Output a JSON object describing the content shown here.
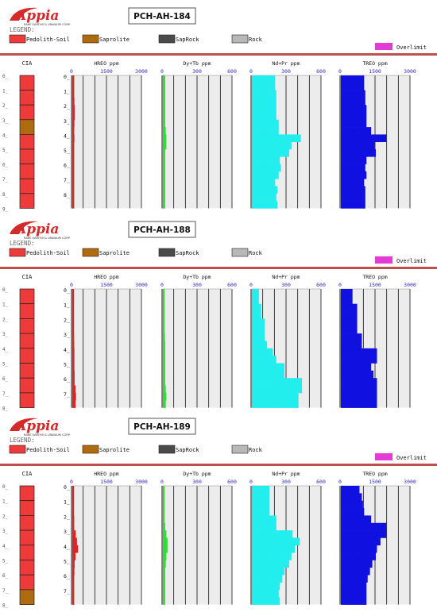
{
  "logo": {
    "name": "Appia",
    "tagline": "RARE EARTHS & URANIUM CORP."
  },
  "legend": {
    "title": "LEGEND:",
    "items": [
      {
        "label": "Pedolith-Soil",
        "color": "#ee3a3a"
      },
      {
        "label": "Saprolite",
        "color": "#b06b10"
      },
      {
        "label": "SapRock",
        "color": "#4a4a4a"
      },
      {
        "label": "Rock",
        "color": "#b8b8b8"
      }
    ],
    "overlimit": {
      "label": "Overlimit",
      "color": "#e43ad6"
    }
  },
  "colors": {
    "divider": "#c0504d",
    "track_bg": "#ececec",
    "tick_label": "#2b2bbf"
  },
  "chart_data": [
    {
      "type": "bar",
      "hole": "PCH-AH-184",
      "cia": {
        "title": "CIA",
        "depths": [
          0,
          1,
          2,
          3,
          4,
          5,
          6,
          7,
          8,
          9
        ],
        "classes": [
          "Pedolith-Soil",
          "Pedolith-Soil",
          "Pedolith-Soil",
          "Saprolite",
          "Pedolith-Soil",
          "Pedolith-Soil",
          "Pedolith-Soil",
          "Pedolith-Soil",
          "Pedolith-Soil"
        ]
      },
      "depth_labels": [
        0,
        1,
        2,
        3,
        4,
        5,
        6,
        7,
        8
      ],
      "tracks": [
        {
          "title": "HREO ppm",
          "ticks": [
            0,
            1500,
            3000
          ],
          "xlim": [
            0,
            3000
          ],
          "color": "#e02222",
          "values": [
            80,
            80,
            80,
            90,
            110,
            110,
            90,
            80,
            90,
            80,
            80,
            80,
            80,
            80,
            80,
            80,
            80,
            80
          ]
        },
        {
          "title": "Dy+Tb ppm",
          "ticks": [
            0,
            300,
            600
          ],
          "xlim": [
            0,
            600
          ],
          "color": "#33dd33",
          "values": [
            20,
            20,
            20,
            20,
            20,
            20,
            20,
            25,
            30,
            30,
            20,
            20,
            20,
            20,
            20,
            20,
            20,
            20
          ]
        },
        {
          "title": "Nd+Pr ppm",
          "ticks": [
            0,
            300,
            600
          ],
          "xlim": [
            0,
            600
          ],
          "color": "#22eeee",
          "values": [
            200,
            200,
            210,
            210,
            210,
            210,
            230,
            230,
            420,
            340,
            320,
            240,
            250,
            230,
            200,
            220,
            210,
            220
          ]
        },
        {
          "title": "TREO ppm",
          "ticks": [
            0,
            1500,
            3000
          ],
          "xlim": [
            0,
            3000
          ],
          "color": "#1010e0",
          "values": [
            1000,
            1000,
            1050,
            1050,
            1100,
            1100,
            1100,
            1300,
            1950,
            1450,
            1500,
            1100,
            1050,
            1100,
            1000,
            1050,
            1050,
            1050
          ]
        }
      ]
    },
    {
      "type": "bar",
      "hole": "PCH-AH-188",
      "cia": {
        "title": "CIA",
        "depths": [
          0,
          1,
          2,
          3,
          4,
          5,
          6,
          7,
          8
        ],
        "classes": [
          "Pedolith-Soil",
          "Pedolith-Soil",
          "Pedolith-Soil",
          "Pedolith-Soil",
          "Pedolith-Soil",
          "Pedolith-Soil",
          "Pedolith-Soil",
          "Pedolith-Soil"
        ]
      },
      "depth_labels": [
        0,
        1,
        2,
        3,
        4,
        5,
        6,
        7
      ],
      "tracks": [
        {
          "title": "HREO ppm",
          "ticks": [
            0,
            1500,
            3000
          ],
          "xlim": [
            0,
            3000
          ],
          "color": "#e02222",
          "values": [
            70,
            70,
            70,
            70,
            70,
            70,
            75,
            80,
            90,
            90,
            90,
            100,
            100,
            140,
            160,
            140
          ]
        },
        {
          "title": "Dy+Tb ppm",
          "ticks": [
            0,
            300,
            600
          ],
          "xlim": [
            0,
            600
          ],
          "color": "#33dd33",
          "values": [
            15,
            15,
            15,
            15,
            15,
            15,
            18,
            20,
            20,
            20,
            20,
            20,
            20,
            25,
            30,
            25
          ]
        },
        {
          "title": "Nd+Pr ppm",
          "ticks": [
            0,
            300,
            600
          ],
          "xlim": [
            0,
            600
          ],
          "color": "#22eeee",
          "values": [
            60,
            60,
            80,
            80,
            110,
            110,
            110,
            130,
            180,
            210,
            280,
            280,
            430,
            430,
            400,
            400
          ]
        },
        {
          "title": "TREO ppm",
          "ticks": [
            0,
            1500,
            3000
          ],
          "xlim": [
            0,
            3000
          ],
          "color": "#1010e0",
          "values": [
            500,
            500,
            700,
            700,
            700,
            700,
            900,
            900,
            1550,
            1550,
            1300,
            1400,
            1550,
            1550,
            1550,
            1550
          ]
        }
      ]
    },
    {
      "type": "bar",
      "hole": "PCH-AH-189",
      "cia": {
        "title": "CIA",
        "depths": [
          0,
          1,
          2,
          3,
          4,
          5,
          6,
          7,
          8
        ],
        "classes": [
          "Pedolith-Soil",
          "Pedolith-Soil",
          "Pedolith-Soil",
          "Pedolith-Soil",
          "Pedolith-Soil",
          "Pedolith-Soil",
          "Pedolith-Soil",
          "Saprolite"
        ]
      },
      "depth_labels": [
        0,
        1,
        2,
        3,
        4,
        5,
        6,
        7
      ],
      "tracks": [
        {
          "title": "HREO ppm",
          "ticks": [
            0,
            1500,
            3000
          ],
          "xlim": [
            0,
            3000
          ],
          "color": "#e02222",
          "values": [
            70,
            70,
            70,
            70,
            80,
            80,
            150,
            200,
            250,
            140,
            100,
            90,
            80,
            80,
            80,
            80
          ]
        },
        {
          "title": "Dy+Tb ppm",
          "ticks": [
            0,
            300,
            600
          ],
          "xlim": [
            0,
            600
          ],
          "color": "#33dd33",
          "values": [
            15,
            15,
            15,
            15,
            15,
            20,
            30,
            40,
            40,
            30,
            25,
            20,
            20,
            20,
            20,
            20
          ]
        },
        {
          "title": "Nd+Pr ppm",
          "ticks": [
            0,
            300,
            600
          ],
          "xlim": [
            0,
            600
          ],
          "color": "#22eeee",
          "values": [
            150,
            150,
            150,
            150,
            210,
            210,
            350,
            410,
            370,
            340,
            320,
            280,
            260,
            240,
            230,
            240
          ]
        },
        {
          "title": "TREO ppm",
          "ticks": [
            0,
            1500,
            3000
          ],
          "xlim": [
            0,
            3000
          ],
          "color": "#1010e0",
          "values": [
            800,
            900,
            950,
            1000,
            1300,
            1950,
            1950,
            1700,
            1550,
            1500,
            1350,
            1250,
            1150,
            1100,
            1100,
            1100
          ]
        }
      ]
    }
  ]
}
